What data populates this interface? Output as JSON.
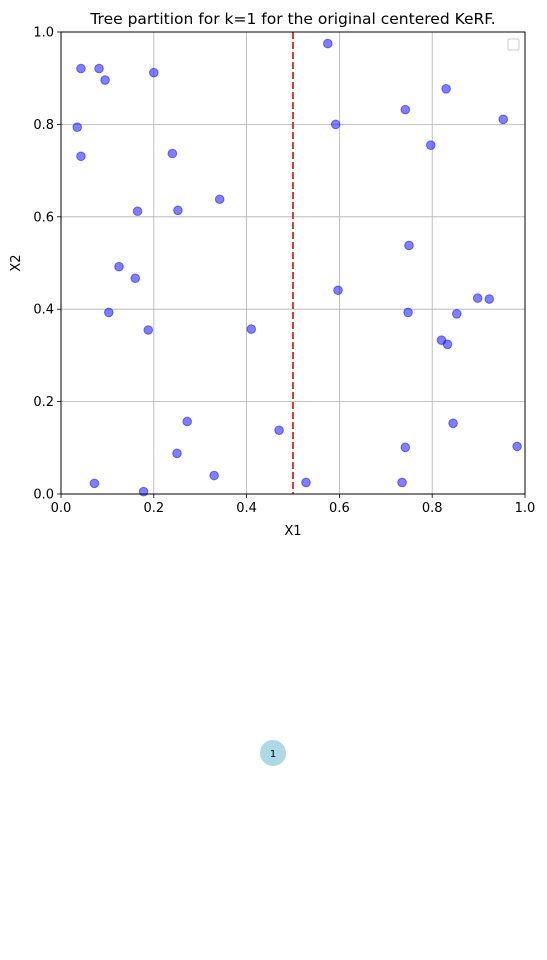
{
  "chart_data": {
    "type": "scatter",
    "title": "Tree partition for k=1 for the original centered KeRF.",
    "xlabel": "X1",
    "ylabel": "X2",
    "xlim": [
      0,
      1
    ],
    "ylim": [
      0,
      1
    ],
    "xticks": [
      "0.0",
      "0.2",
      "0.4",
      "0.6",
      "0.8",
      "1.0"
    ],
    "yticks": [
      "0.0",
      "0.2",
      "0.4",
      "0.6",
      "0.8",
      "1.0"
    ],
    "grid": true,
    "legend": "top-right (empty)",
    "point_color": "#0000ff",
    "split_line": {
      "orientation": "vertical",
      "x": 0.5,
      "color": "#d62728",
      "style": "dashed"
    },
    "points": [
      [
        0.043,
        0.921
      ],
      [
        0.082,
        0.921
      ],
      [
        0.095,
        0.896
      ],
      [
        0.2,
        0.912
      ],
      [
        0.035,
        0.794
      ],
      [
        0.043,
        0.731
      ],
      [
        0.24,
        0.737
      ],
      [
        0.575,
        0.975
      ],
      [
        0.742,
        0.832
      ],
      [
        0.83,
        0.877
      ],
      [
        0.592,
        0.8
      ],
      [
        0.953,
        0.811
      ],
      [
        0.797,
        0.755
      ],
      [
        0.165,
        0.612
      ],
      [
        0.252,
        0.614
      ],
      [
        0.342,
        0.638
      ],
      [
        0.125,
        0.492
      ],
      [
        0.16,
        0.467
      ],
      [
        0.75,
        0.538
      ],
      [
        0.597,
        0.441
      ],
      [
        0.103,
        0.393
      ],
      [
        0.188,
        0.355
      ],
      [
        0.41,
        0.357
      ],
      [
        0.748,
        0.393
      ],
      [
        0.853,
        0.39
      ],
      [
        0.898,
        0.424
      ],
      [
        0.923,
        0.422
      ],
      [
        0.82,
        0.333
      ],
      [
        0.833,
        0.324
      ],
      [
        0.272,
        0.157
      ],
      [
        0.47,
        0.138
      ],
      [
        0.25,
        0.088
      ],
      [
        0.33,
        0.04
      ],
      [
        0.072,
        0.023
      ],
      [
        0.178,
        0.005
      ],
      [
        0.528,
        0.025
      ],
      [
        0.742,
        0.101
      ],
      [
        0.845,
        0.153
      ],
      [
        0.983,
        0.103
      ],
      [
        0.735,
        0.025
      ]
    ]
  },
  "tree": {
    "node_label": "1",
    "node_color": "#add8e6"
  }
}
